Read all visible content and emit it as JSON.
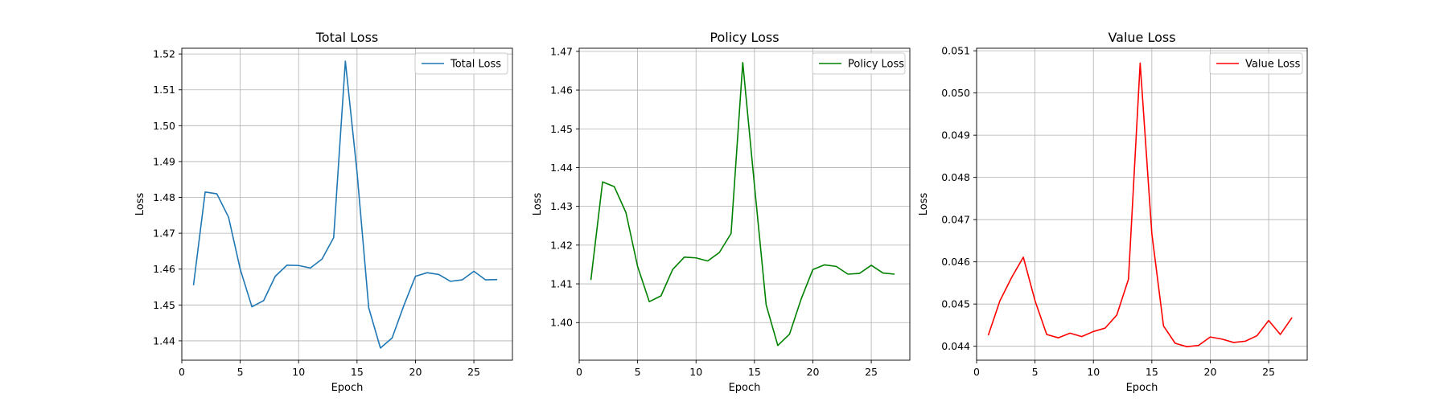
{
  "chart_data": [
    {
      "type": "line",
      "title": "Total Loss",
      "xlabel": "Epoch",
      "ylabel": "Loss",
      "xlim": [
        0,
        28.3
      ],
      "ylim": [
        1.4346,
        1.5216
      ],
      "xticks": [
        0,
        5,
        10,
        15,
        20,
        25
      ],
      "xtick_labels": [
        "0",
        "5",
        "10",
        "15",
        "20",
        "25"
      ],
      "yticks": [
        1.44,
        1.45,
        1.46,
        1.47,
        1.48,
        1.49,
        1.5,
        1.51,
        1.52
      ],
      "ytick_labels": [
        "1.44",
        "1.45",
        "1.46",
        "1.47",
        "1.48",
        "1.49",
        "1.50",
        "1.51",
        "1.52"
      ],
      "grid": true,
      "legend": "top-right",
      "series": [
        {
          "name": "Total Loss",
          "color": "#1f77b4",
          "x": [
            1,
            2,
            3,
            4,
            5,
            6,
            7,
            8,
            9,
            10,
            11,
            12,
            13,
            14,
            15,
            16,
            17,
            18,
            19,
            20,
            21,
            22,
            23,
            24,
            25,
            26,
            27
          ],
          "y": [
            1.4555,
            1.4815,
            1.481,
            1.4745,
            1.46,
            1.4495,
            1.4512,
            1.458,
            1.4611,
            1.461,
            1.4603,
            1.4628,
            1.4688,
            1.518,
            1.487,
            1.4492,
            1.438,
            1.4408,
            1.4498,
            1.458,
            1.459,
            1.4585,
            1.4566,
            1.457,
            1.4594,
            1.457,
            1.4571
          ]
        }
      ]
    },
    {
      "type": "line",
      "title": "Policy Loss",
      "xlabel": "Epoch",
      "ylabel": "Loss",
      "xlim": [
        0,
        28.3
      ],
      "ylim": [
        1.3903,
        1.4708
      ],
      "xticks": [
        0,
        5,
        10,
        15,
        20,
        25
      ],
      "xtick_labels": [
        "0",
        "5",
        "10",
        "15",
        "20",
        "25"
      ],
      "yticks": [
        1.4,
        1.41,
        1.42,
        1.43,
        1.44,
        1.45,
        1.46,
        1.47
      ],
      "ytick_labels": [
        "1.40",
        "1.41",
        "1.42",
        "1.43",
        "1.44",
        "1.45",
        "1.46",
        "1.47"
      ],
      "grid": true,
      "legend": "top-right",
      "series": [
        {
          "name": "Policy Loss",
          "color": "#008000",
          "x": [
            1,
            2,
            3,
            4,
            5,
            6,
            7,
            8,
            9,
            10,
            11,
            12,
            13,
            14,
            15,
            16,
            17,
            18,
            19,
            20,
            21,
            22,
            23,
            24,
            25,
            26,
            27
          ],
          "y": [
            1.411,
            1.4363,
            1.4351,
            1.4284,
            1.4145,
            1.4054,
            1.4069,
            1.4137,
            1.4169,
            1.4167,
            1.4159,
            1.4181,
            1.423,
            1.4671,
            1.4355,
            1.4046,
            1.3941,
            1.397,
            1.4061,
            1.4137,
            1.4149,
            1.4145,
            1.4125,
            1.4127,
            1.4148,
            1.4128,
            1.4125
          ]
        }
      ]
    },
    {
      "type": "line",
      "title": "Value Loss",
      "xlabel": "Epoch",
      "ylabel": "Loss",
      "xlim": [
        0,
        28.3
      ],
      "ylim": [
        0.04367,
        0.05106
      ],
      "xticks": [
        0,
        5,
        10,
        15,
        20,
        25
      ],
      "xtick_labels": [
        "0",
        "5",
        "10",
        "15",
        "20",
        "25"
      ],
      "yticks": [
        0.044,
        0.045,
        0.046,
        0.047,
        0.048,
        0.049,
        0.05,
        0.051
      ],
      "ytick_labels": [
        "0.044",
        "0.045",
        "0.046",
        "0.047",
        "0.048",
        "0.049",
        "0.050",
        "0.051"
      ],
      "grid": true,
      "legend": "top-right",
      "series": [
        {
          "name": "Value Loss",
          "color": "#ff0000",
          "x": [
            1,
            2,
            3,
            4,
            5,
            6,
            7,
            8,
            9,
            10,
            11,
            12,
            13,
            14,
            15,
            16,
            17,
            18,
            19,
            20,
            21,
            22,
            23,
            24,
            25,
            26,
            27
          ],
          "y": [
            0.04426,
            0.04508,
            0.04563,
            0.04611,
            0.04508,
            0.04428,
            0.0442,
            0.04431,
            0.04423,
            0.04435,
            0.04443,
            0.04474,
            0.04559,
            0.05071,
            0.04667,
            0.04448,
            0.04407,
            0.04399,
            0.04402,
            0.04422,
            0.04417,
            0.04409,
            0.04412,
            0.04425,
            0.04461,
            0.04428,
            0.04468
          ]
        }
      ]
    }
  ]
}
